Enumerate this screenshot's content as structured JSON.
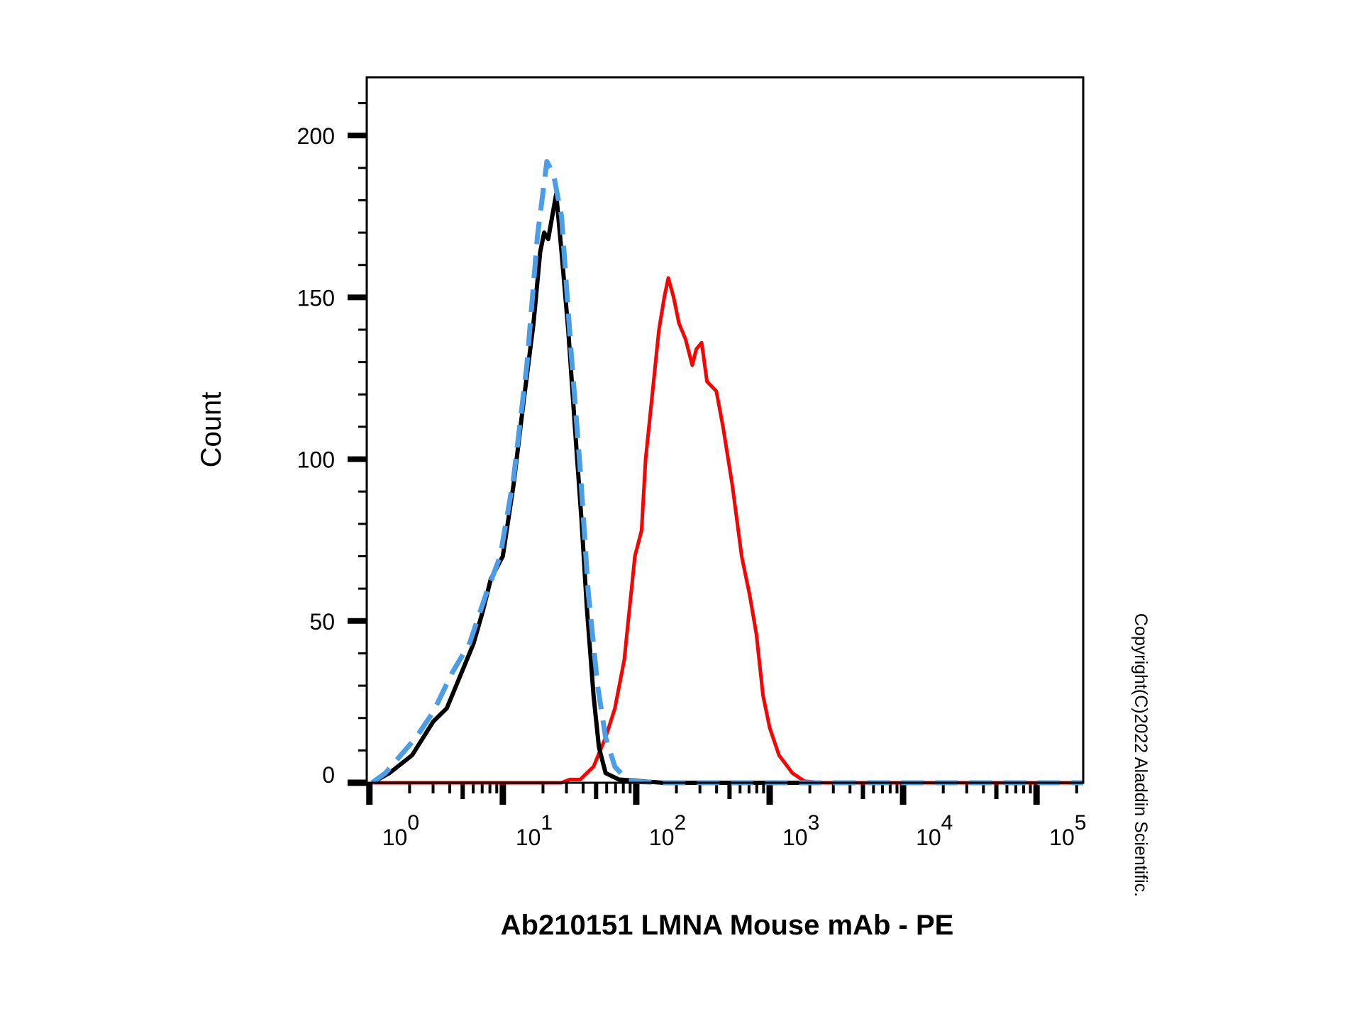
{
  "chart_data": {
    "type": "line",
    "title": "",
    "xlabel": "Ab210151 LMNA Mouse mAb - PE",
    "ylabel": "Count",
    "xscale": "log10",
    "xlim_log10": [
      -0.02,
      5.35
    ],
    "ylim": [
      0,
      218
    ],
    "yticks": [
      0,
      50,
      100,
      150,
      200
    ],
    "ytick_labels": [
      "0",
      "50",
      "100",
      "150",
      "200"
    ],
    "xticks_log10": [
      0,
      1,
      2,
      3,
      4,
      5
    ],
    "xtick_labels": [
      {
        "base": "10",
        "exp": "0"
      },
      {
        "base": "10",
        "exp": "1"
      },
      {
        "base": "10",
        "exp": "2"
      },
      {
        "base": "10",
        "exp": "3"
      },
      {
        "base": "10",
        "exp": "4"
      },
      {
        "base": "10",
        "exp": "5"
      }
    ],
    "grid": false,
    "legend": "none",
    "series": [
      {
        "color": "#ff0000",
        "style": "solid",
        "points_log10x": [
          [
            0.02,
            0
          ],
          [
            1.44,
            0
          ],
          [
            1.5,
            1
          ],
          [
            1.58,
            1
          ],
          [
            1.68,
            5
          ],
          [
            1.77,
            14
          ],
          [
            1.84,
            23
          ],
          [
            1.91,
            38
          ],
          [
            1.95,
            54
          ],
          [
            1.99,
            70
          ],
          [
            2.04,
            78
          ],
          [
            2.07,
            100
          ],
          [
            2.13,
            124
          ],
          [
            2.17,
            140
          ],
          [
            2.21,
            150
          ],
          [
            2.24,
            156
          ],
          [
            2.28,
            150
          ],
          [
            2.32,
            142
          ],
          [
            2.37,
            137
          ],
          [
            2.42,
            129
          ],
          [
            2.45,
            134
          ],
          [
            2.49,
            136
          ],
          [
            2.53,
            124
          ],
          [
            2.6,
            121
          ],
          [
            2.65,
            110
          ],
          [
            2.72,
            92
          ],
          [
            2.79,
            70
          ],
          [
            2.85,
            58
          ],
          [
            2.9,
            46
          ],
          [
            2.95,
            27
          ],
          [
            3.0,
            17
          ],
          [
            3.07,
            8.5
          ],
          [
            3.17,
            3
          ],
          [
            3.26,
            0.5
          ],
          [
            3.4,
            0
          ],
          [
            5.35,
            0
          ]
        ]
      },
      {
        "color": "#000000",
        "style": "solid",
        "points_log10x": [
          [
            0.02,
            0
          ],
          [
            0.15,
            3
          ],
          [
            0.32,
            8.5
          ],
          [
            0.48,
            19
          ],
          [
            0.58,
            23
          ],
          [
            0.68,
            33
          ],
          [
            0.78,
            43
          ],
          [
            0.85,
            53
          ],
          [
            0.91,
            63
          ],
          [
            1.0,
            70
          ],
          [
            1.08,
            92
          ],
          [
            1.15,
            116
          ],
          [
            1.23,
            142
          ],
          [
            1.28,
            164
          ],
          [
            1.31,
            170
          ],
          [
            1.34,
            168
          ],
          [
            1.4,
            182
          ],
          [
            1.44,
            164
          ],
          [
            1.49,
            140
          ],
          [
            1.54,
            110
          ],
          [
            1.59,
            81
          ],
          [
            1.63,
            54
          ],
          [
            1.68,
            27
          ],
          [
            1.72,
            11
          ],
          [
            1.77,
            3
          ],
          [
            1.87,
            1
          ],
          [
            2.2,
            0
          ],
          [
            3.3,
            0
          ]
        ]
      },
      {
        "color": "#4a9de8",
        "style": "dashed",
        "points_log10x": [
          [
            0.02,
            0
          ],
          [
            0.12,
            3
          ],
          [
            0.35,
            14
          ],
          [
            0.48,
            22
          ],
          [
            0.62,
            34
          ],
          [
            0.75,
            43
          ],
          [
            0.88,
            59
          ],
          [
            0.98,
            70
          ],
          [
            1.08,
            94
          ],
          [
            1.18,
            129
          ],
          [
            1.26,
            169
          ],
          [
            1.33,
            192
          ],
          [
            1.38,
            188
          ],
          [
            1.44,
            175
          ],
          [
            1.51,
            134
          ],
          [
            1.58,
            97
          ],
          [
            1.64,
            59
          ],
          [
            1.71,
            30
          ],
          [
            1.77,
            14
          ],
          [
            1.84,
            5
          ],
          [
            1.94,
            0.5
          ],
          [
            2.2,
            0
          ],
          [
            5.35,
            0
          ]
        ]
      }
    ]
  },
  "copyright": "Copyright(C)2022 Aladdin Scientific."
}
